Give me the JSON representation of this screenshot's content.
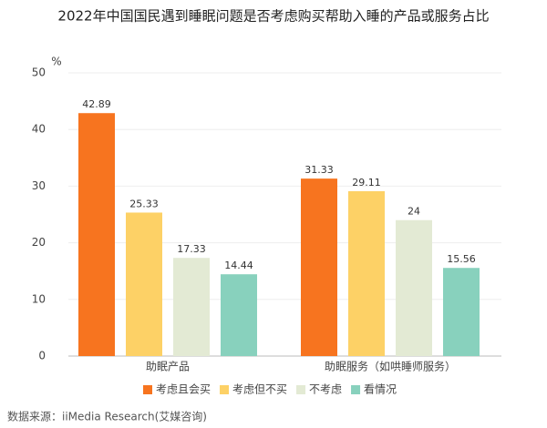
{
  "chart_data": {
    "type": "bar",
    "title": "2022年中国国民遇到睡眠问题是否考虑购买帮助入睡的产品或服务占比",
    "unit": "%",
    "categories": [
      "助眠产品",
      "助眠服务（如哄睡师服务）"
    ],
    "series": [
      {
        "name": "考虑且会买",
        "color": "#f7741f",
        "values": [
          42.89,
          31.33
        ]
      },
      {
        "name": "考虑但不买",
        "color": "#fdd166",
        "values": [
          25.33,
          29.11
        ]
      },
      {
        "name": "不考虑",
        "color": "#e3ead4",
        "values": [
          17.33,
          24
        ]
      },
      {
        "name": "看情况",
        "color": "#88d1bd",
        "values": [
          14.44,
          15.56
        ]
      }
    ],
    "ylim": [
      0,
      50
    ],
    "yticks": [
      0,
      10,
      20,
      30,
      40,
      50
    ],
    "grid": true,
    "source": "数据来源：iiMedia Research(艾媒咨询)"
  }
}
